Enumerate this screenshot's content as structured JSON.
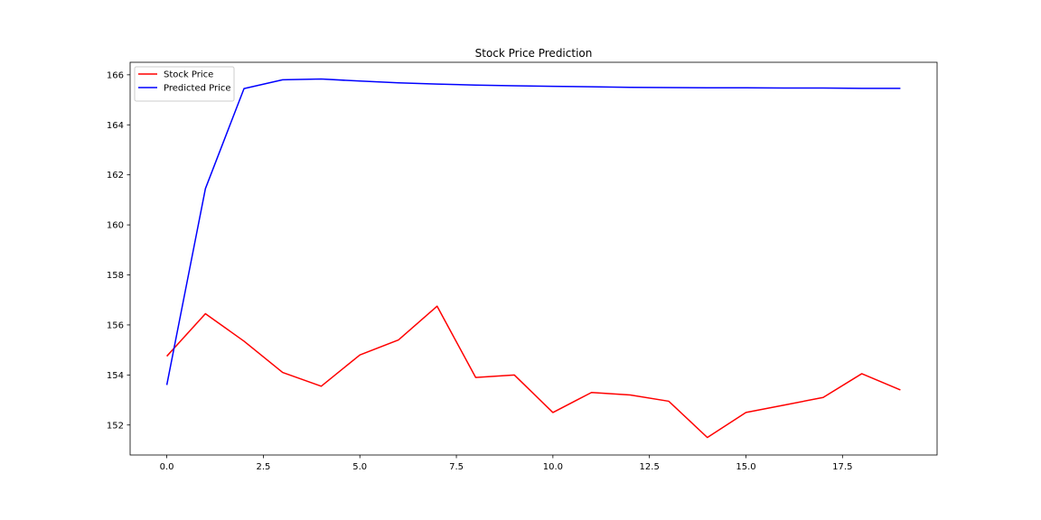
{
  "chart_data": {
    "type": "line",
    "title": "Stock Price Prediction",
    "xlabel": "",
    "ylabel": "",
    "xlim": [
      -0.95,
      19.95
    ],
    "ylim": [
      150.8,
      166.5
    ],
    "x_ticks": [
      0.0,
      2.5,
      5.0,
      7.5,
      10.0,
      12.5,
      15.0,
      17.5
    ],
    "x_tick_labels": [
      "0.0",
      "2.5",
      "5.0",
      "7.5",
      "10.0",
      "12.5",
      "15.0",
      "17.5"
    ],
    "y_ticks": [
      152,
      154,
      156,
      158,
      160,
      162,
      164,
      166
    ],
    "y_tick_labels": [
      "152",
      "154",
      "156",
      "158",
      "160",
      "162",
      "164",
      "166"
    ],
    "grid": false,
    "legend_position": "upper-left",
    "x": [
      0,
      1,
      2,
      3,
      4,
      5,
      6,
      7,
      8,
      9,
      10,
      11,
      12,
      13,
      14,
      15,
      16,
      17,
      18,
      19
    ],
    "series": [
      {
        "name": "Stock Price",
        "color": "#ff0000",
        "values": [
          154.75,
          156.45,
          155.35,
          154.1,
          153.55,
          154.8,
          155.4,
          156.75,
          153.9,
          154.0,
          152.5,
          153.3,
          153.2,
          152.95,
          151.5,
          152.5,
          152.8,
          153.1,
          154.05,
          153.4
        ]
      },
      {
        "name": "Predicted Price",
        "color": "#0000ff",
        "values": [
          153.6,
          161.45,
          165.45,
          165.8,
          165.83,
          165.75,
          165.68,
          165.63,
          165.59,
          165.56,
          165.54,
          165.52,
          165.5,
          165.49,
          165.48,
          165.48,
          165.47,
          165.47,
          165.46,
          165.46
        ]
      }
    ]
  }
}
